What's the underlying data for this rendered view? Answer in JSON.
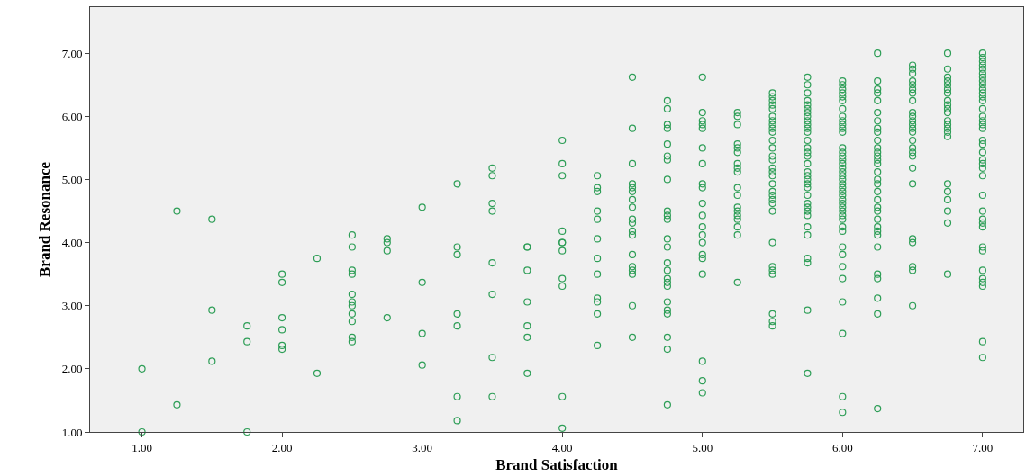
{
  "chart_data": {
    "type": "scatter",
    "xlabel": "Brand Satisfaction",
    "ylabel": "Brand Resonance",
    "xlim": [
      0.63,
      7.29
    ],
    "ylim": [
      1.0,
      7.73
    ],
    "xticks": [
      {
        "value": 1,
        "label": "1.00"
      },
      {
        "value": 2,
        "label": "2.00"
      },
      {
        "value": 3,
        "label": "3.00"
      },
      {
        "value": 4,
        "label": "4.00"
      },
      {
        "value": 5,
        "label": "5.00"
      },
      {
        "value": 6,
        "label": "6.00"
      },
      {
        "value": 7,
        "label": "7.00"
      }
    ],
    "yticks": [
      {
        "value": 1,
        "label": "1.00"
      },
      {
        "value": 2,
        "label": "2.00"
      },
      {
        "value": 3,
        "label": "3.00"
      },
      {
        "value": 4,
        "label": "4.00"
      },
      {
        "value": 5,
        "label": "5.00"
      },
      {
        "value": 6,
        "label": "6.00"
      },
      {
        "value": 7,
        "label": "7.00"
      }
    ],
    "grid": false,
    "marker": "circle",
    "series": [
      {
        "color": "#2e9e57",
        "x": [
          1,
          1,
          1.25,
          1.25,
          1.5,
          1.5,
          1.5,
          1.75,
          1.75,
          1.75,
          2,
          2,
          2,
          2,
          2,
          2,
          2.25,
          2.25,
          2.5,
          2.5,
          2.5,
          2.5,
          2.5,
          2.5,
          2.5,
          2.5,
          2.5,
          2.5,
          2.5,
          2.75,
          2.75,
          2.75,
          2.75,
          3,
          3,
          3,
          3,
          3.25,
          3.25,
          3.25,
          3.25,
          3.25,
          3.25,
          3.25,
          3.5,
          3.5,
          3.5,
          3.5,
          3.5,
          3.5,
          3.5,
          3.5,
          3.75,
          3.75,
          3.75,
          3.75,
          3.75,
          3.75,
          3.75,
          4,
          4,
          4,
          4,
          4,
          4,
          4,
          4,
          4,
          4,
          4,
          4.25,
          4.25,
          4.25,
          4.25,
          4.25,
          4.25,
          4.25,
          4.25,
          4.25,
          4.25,
          4.25,
          4.25,
          4.5,
          4.5,
          4.5,
          4.5,
          4.5,
          4.5,
          4.5,
          4.5,
          4.5,
          4.5,
          4.5,
          4.5,
          4.5,
          4.5,
          4.5,
          4.5,
          4.5,
          4.5,
          4.75,
          4.75,
          4.75,
          4.75,
          4.75,
          4.75,
          4.75,
          4.75,
          4.75,
          4.75,
          4.75,
          4.75,
          4.75,
          4.75,
          4.75,
          4.75,
          4.75,
          4.75,
          4.75,
          4.75,
          4.75,
          4.75,
          4.75,
          4.75,
          5,
          5,
          5,
          5,
          5,
          5,
          5,
          5,
          5,
          5,
          5,
          5,
          5,
          5,
          5,
          5,
          5,
          5,
          5,
          5,
          5.25,
          5.25,
          5.25,
          5.25,
          5.25,
          5.25,
          5.25,
          5.25,
          5.25,
          5.25,
          5.25,
          5.25,
          5.25,
          5.25,
          5.25,
          5.25,
          5.25,
          5.25,
          5.5,
          5.5,
          5.5,
          5.5,
          5.5,
          5.5,
          5.5,
          5.5,
          5.5,
          5.5,
          5.5,
          5.5,
          5.5,
          5.5,
          5.5,
          5.5,
          5.5,
          5.5,
          5.5,
          5.5,
          5.5,
          5.5,
          5.5,
          5.5,
          5.5,
          5.5,
          5.5,
          5.5,
          5.5,
          5.5,
          5.75,
          5.75,
          5.75,
          5.75,
          5.75,
          5.75,
          5.75,
          5.75,
          5.75,
          5.75,
          5.75,
          5.75,
          5.75,
          5.75,
          5.75,
          5.75,
          5.75,
          5.75,
          5.75,
          5.75,
          5.75,
          5.75,
          5.75,
          5.75,
          5.75,
          5.75,
          5.75,
          5.75,
          5.75,
          5.75,
          5.75,
          5.75,
          5.75,
          6,
          6,
          6,
          6,
          6,
          6,
          6,
          6,
          6,
          6,
          6,
          6,
          6,
          6,
          6,
          6,
          6,
          6,
          6,
          6,
          6,
          6,
          6,
          6,
          6,
          6,
          6,
          6,
          6,
          6,
          6,
          6,
          6,
          6,
          6,
          6,
          6,
          6,
          6,
          6,
          6,
          6.25,
          6.25,
          6.25,
          6.25,
          6.25,
          6.25,
          6.25,
          6.25,
          6.25,
          6.25,
          6.25,
          6.25,
          6.25,
          6.25,
          6.25,
          6.25,
          6.25,
          6.25,
          6.25,
          6.25,
          6.25,
          6.25,
          6.25,
          6.25,
          6.25,
          6.25,
          6.25,
          6.25,
          6.25,
          6.25,
          6.25,
          6.25,
          6.5,
          6.5,
          6.5,
          6.5,
          6.5,
          6.5,
          6.5,
          6.5,
          6.5,
          6.5,
          6.5,
          6.5,
          6.5,
          6.5,
          6.5,
          6.5,
          6.5,
          6.5,
          6.5,
          6.5,
          6.5,
          6.5,
          6.5,
          6.5,
          6.5,
          6.75,
          6.75,
          6.75,
          6.75,
          6.75,
          6.75,
          6.75,
          6.75,
          6.75,
          6.75,
          6.75,
          6.75,
          6.75,
          6.75,
          6.75,
          6.75,
          6.75,
          6.75,
          6.75,
          6.75,
          6.75,
          6.75,
          7,
          7,
          7,
          7,
          7,
          7,
          7,
          7,
          7,
          7,
          7,
          7,
          7,
          7,
          7,
          7,
          7,
          7,
          7,
          7,
          7,
          7,
          7,
          7,
          7,
          7,
          7,
          7,
          7,
          7,
          7,
          7,
          7,
          7,
          7,
          7,
          7,
          7
        ],
        "values": [
          2.0,
          1.0,
          4.5,
          1.43,
          4.37,
          2.93,
          2.12,
          2.68,
          2.43,
          1.0,
          3.5,
          3.37,
          2.81,
          2.62,
          2.37,
          2.31,
          3.75,
          1.93,
          4.12,
          3.93,
          3.56,
          3.5,
          3.18,
          3.06,
          3.0,
          2.87,
          2.75,
          2.5,
          2.43,
          4.06,
          4.0,
          3.87,
          2.81,
          4.56,
          3.37,
          2.56,
          2.06,
          4.93,
          3.93,
          3.81,
          2.87,
          2.68,
          1.56,
          1.18,
          5.18,
          5.06,
          4.62,
          4.5,
          3.68,
          3.18,
          2.18,
          1.56,
          3.93,
          3.93,
          3.56,
          3.06,
          2.68,
          2.5,
          1.93,
          5.62,
          5.25,
          5.06,
          4.18,
          4.0,
          4.0,
          3.87,
          3.43,
          3.31,
          1.56,
          1.06,
          5.06,
          4.87,
          4.81,
          4.5,
          4.37,
          4.06,
          3.75,
          3.5,
          3.12,
          3.06,
          2.87,
          2.37,
          6.62,
          5.81,
          5.25,
          4.93,
          4.87,
          4.81,
          4.68,
          4.56,
          4.37,
          4.31,
          4.18,
          4.12,
          3.81,
          3.62,
          3.56,
          3.5,
          3.0,
          2.5,
          6.25,
          6.12,
          5.87,
          5.81,
          5.56,
          5.37,
          5.31,
          5.0,
          4.5,
          4.43,
          4.37,
          4.06,
          3.93,
          3.68,
          3.56,
          3.43,
          3.37,
          3.31,
          3.06,
          2.93,
          2.87,
          2.5,
          2.31,
          1.43,
          6.62,
          6.06,
          5.93,
          5.87,
          5.81,
          5.5,
          5.25,
          4.93,
          4.87,
          4.62,
          4.43,
          4.25,
          4.12,
          4.0,
          3.81,
          3.75,
          3.5,
          2.12,
          1.81,
          1.62,
          6.06,
          6.0,
          5.87,
          5.56,
          5.5,
          5.43,
          5.25,
          5.18,
          5.12,
          4.87,
          4.75,
          4.56,
          4.5,
          4.43,
          4.37,
          4.25,
          4.12,
          3.37,
          6.37,
          6.31,
          6.25,
          6.18,
          6.12,
          6.0,
          5.93,
          5.87,
          5.81,
          5.75,
          5.62,
          5.5,
          5.37,
          5.31,
          5.18,
          5.12,
          5.06,
          4.93,
          4.81,
          4.75,
          4.68,
          4.62,
          4.5,
          4.0,
          3.62,
          3.56,
          3.5,
          2.87,
          2.75,
          2.68,
          6.62,
          6.5,
          6.37,
          6.25,
          6.18,
          6.12,
          6.06,
          6.0,
          5.93,
          5.87,
          5.81,
          5.75,
          5.62,
          5.5,
          5.43,
          5.37,
          5.25,
          5.12,
          5.06,
          5.0,
          4.93,
          4.87,
          4.75,
          4.62,
          4.56,
          4.5,
          4.43,
          4.25,
          4.12,
          3.75,
          3.68,
          2.93,
          1.93,
          6.56,
          6.5,
          6.43,
          6.37,
          6.31,
          6.25,
          6.12,
          6.0,
          5.93,
          5.87,
          5.81,
          5.75,
          5.5,
          5.43,
          5.37,
          5.31,
          5.25,
          5.18,
          5.12,
          5.06,
          5.0,
          4.93,
          4.87,
          4.81,
          4.75,
          4.68,
          4.62,
          4.56,
          4.5,
          4.43,
          4.37,
          4.25,
          4.18,
          3.93,
          3.81,
          3.62,
          3.43,
          3.06,
          2.56,
          1.56,
          1.31,
          7.0,
          6.56,
          6.43,
          6.37,
          6.25,
          6.06,
          5.93,
          5.81,
          5.75,
          5.62,
          5.5,
          5.43,
          5.37,
          5.31,
          5.25,
          5.12,
          5.0,
          4.93,
          4.81,
          4.68,
          4.56,
          4.5,
          4.37,
          4.25,
          4.18,
          4.12,
          3.93,
          3.5,
          3.43,
          3.12,
          2.87,
          1.37,
          6.81,
          6.75,
          6.68,
          6.56,
          6.5,
          6.43,
          6.37,
          6.25,
          6.06,
          6.0,
          5.93,
          5.87,
          5.81,
          5.75,
          5.62,
          5.5,
          5.43,
          5.37,
          5.18,
          4.93,
          4.06,
          4.0,
          3.62,
          3.56,
          3.0,
          7.0,
          6.75,
          6.62,
          6.56,
          6.5,
          6.43,
          6.37,
          6.25,
          6.18,
          6.12,
          6.06,
          5.93,
          5.87,
          5.81,
          5.75,
          5.68,
          4.93,
          4.81,
          4.68,
          4.5,
          4.31,
          3.5,
          7.0,
          6.93,
          6.87,
          6.81,
          6.75,
          6.68,
          6.62,
          6.56,
          6.5,
          6.43,
          6.37,
          6.31,
          6.25,
          6.12,
          6.0,
          5.93,
          5.87,
          5.81,
          5.62,
          5.56,
          5.43,
          5.31,
          5.25,
          5.18,
          5.06,
          4.75,
          4.5,
          4.37,
          4.31,
          4.25,
          3.93,
          3.87,
          3.56,
          3.43,
          3.37,
          3.31,
          2.43,
          2.18
        ]
      }
    ]
  }
}
